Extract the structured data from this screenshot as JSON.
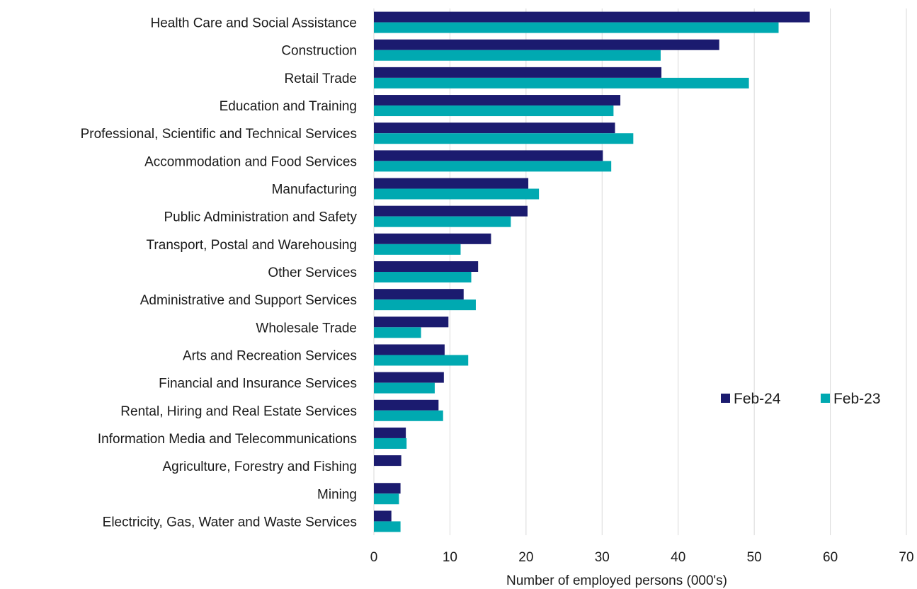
{
  "chart_data": {
    "type": "bar",
    "orientation": "horizontal",
    "categories": [
      "Health Care and Social Assistance",
      "Construction",
      "Retail Trade",
      "Education and Training",
      "Professional, Scientific and Technical Services",
      "Accommodation and Food Services",
      "Manufacturing",
      "Public Administration and Safety",
      "Transport, Postal and Warehousing",
      "Other Services",
      "Administrative and Support Services",
      "Wholesale Trade",
      "Arts and Recreation Services",
      "Financial and Insurance Services",
      "Rental, Hiring and Real Estate Services",
      "Information Media and Telecommunications",
      "Agriculture, Forestry and Fishing",
      "Mining",
      "Electricity, Gas, Water and Waste Services"
    ],
    "series": [
      {
        "name": "Feb-24",
        "color": "#1b1b6f",
        "values": [
          57.3,
          45.4,
          37.8,
          32.4,
          31.7,
          30.1,
          20.3,
          20.2,
          15.4,
          13.7,
          11.8,
          9.8,
          9.3,
          9.2,
          8.5,
          4.2,
          3.6,
          3.5,
          2.3
        ]
      },
      {
        "name": "Feb-23",
        "color": "#00a9b1",
        "values": [
          53.2,
          37.7,
          49.3,
          31.5,
          34.1,
          31.2,
          21.7,
          18.0,
          11.4,
          12.8,
          13.4,
          6.2,
          12.4,
          8.0,
          9.1,
          4.3,
          0,
          3.3,
          3.5
        ]
      }
    ],
    "xlabel": "Number of employed persons (000's)",
    "ylabel": "",
    "xlim": [
      0,
      70
    ],
    "xticks": [
      0,
      10,
      20,
      30,
      40,
      50,
      60,
      70
    ],
    "grid": true,
    "legend_position": "right"
  }
}
